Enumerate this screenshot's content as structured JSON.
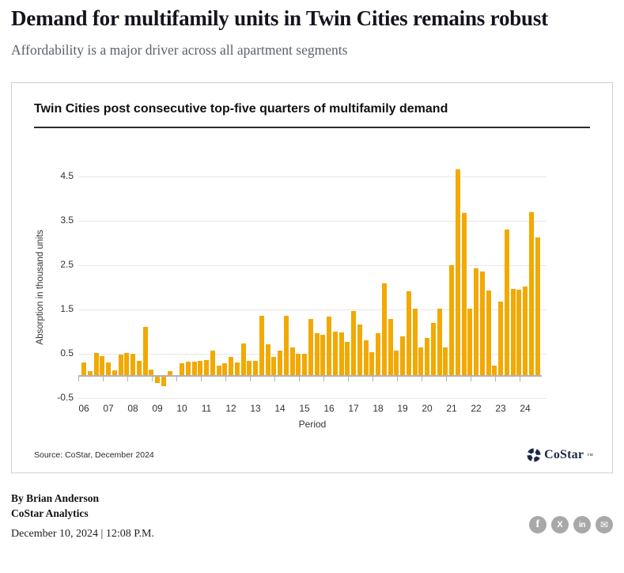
{
  "article": {
    "headline": "Demand for multifamily units in Twin Cities remains robust",
    "subtitle": "Affordability is a major driver across all apartment segments",
    "byline_author": "By Brian Anderson",
    "byline_org": "CoStar Analytics",
    "dateline": "December 10, 2024 | 12:08 P.M."
  },
  "chart": {
    "source": "Source: CoStar, December 2024",
    "logo_text": "CoStar",
    "logo_mark": "™"
  },
  "chart_data": {
    "type": "bar",
    "title": "Twin Cities post consecutive top-five quarters of multifamily demand",
    "xlabel": "Period",
    "ylabel": "Absorption in thousand units",
    "ylim": [
      -0.5,
      4.5
    ],
    "yticks": [
      4.5,
      3.5,
      2.5,
      1.5,
      0.5,
      -0.5
    ],
    "grid": "horizontal",
    "legend": "none",
    "x_unit": "quarter",
    "years": [
      {
        "year": "06",
        "values": [
          0.3,
          0.11,
          0.52,
          0.45
        ]
      },
      {
        "year": "07",
        "values": [
          0.3,
          0.13,
          0.49,
          0.52
        ]
      },
      {
        "year": "08",
        "values": [
          0.51,
          0.34,
          1.12,
          0.14
        ]
      },
      {
        "year": "09",
        "values": [
          -0.15,
          -0.22,
          0.12,
          0.02
        ]
      },
      {
        "year": "10",
        "values": [
          0.29,
          0.33,
          0.32,
          0.35
        ]
      },
      {
        "year": "11",
        "values": [
          0.37,
          0.57,
          0.24,
          0.29
        ]
      },
      {
        "year": "12",
        "values": [
          0.43,
          0.3,
          0.74,
          0.35
        ]
      },
      {
        "year": "13",
        "values": [
          0.35,
          1.37,
          0.71,
          0.43
        ]
      },
      {
        "year": "14",
        "values": [
          0.58,
          1.36,
          0.65,
          0.51
        ]
      },
      {
        "year": "15",
        "values": [
          0.51,
          1.29,
          0.96,
          0.93
        ]
      },
      {
        "year": "16",
        "values": [
          1.34,
          1.01,
          0.98,
          0.77
        ]
      },
      {
        "year": "17",
        "values": [
          1.46,
          1.16,
          0.8,
          0.54
        ]
      },
      {
        "year": "18",
        "values": [
          0.97,
          2.1,
          1.29,
          0.58
        ]
      },
      {
        "year": "19",
        "values": [
          0.9,
          1.92,
          1.53,
          0.65
        ]
      },
      {
        "year": "20",
        "values": [
          0.86,
          1.2,
          1.53,
          0.65
        ]
      },
      {
        "year": "21",
        "values": [
          2.5,
          4.66,
          3.69,
          1.52
        ]
      },
      {
        "year": "22",
        "values": [
          2.43,
          2.36,
          1.93,
          0.23
        ]
      },
      {
        "year": "23",
        "values": [
          1.68,
          3.31,
          1.97,
          1.95
        ]
      },
      {
        "year": "24",
        "values": [
          2.02,
          3.7,
          3.13
        ]
      }
    ]
  },
  "social": {
    "items": [
      {
        "name": "facebook",
        "glyph": "f"
      },
      {
        "name": "x",
        "glyph": "X"
      },
      {
        "name": "linkedin",
        "glyph": "in"
      },
      {
        "name": "email",
        "glyph": "✉"
      }
    ]
  },
  "colors": {
    "bar": "#F2A900",
    "logo_navy": "#1C2749",
    "social_gray": "#A8A8A8",
    "headline_text": "#14141F",
    "subtitle_text": "#5A6270"
  }
}
